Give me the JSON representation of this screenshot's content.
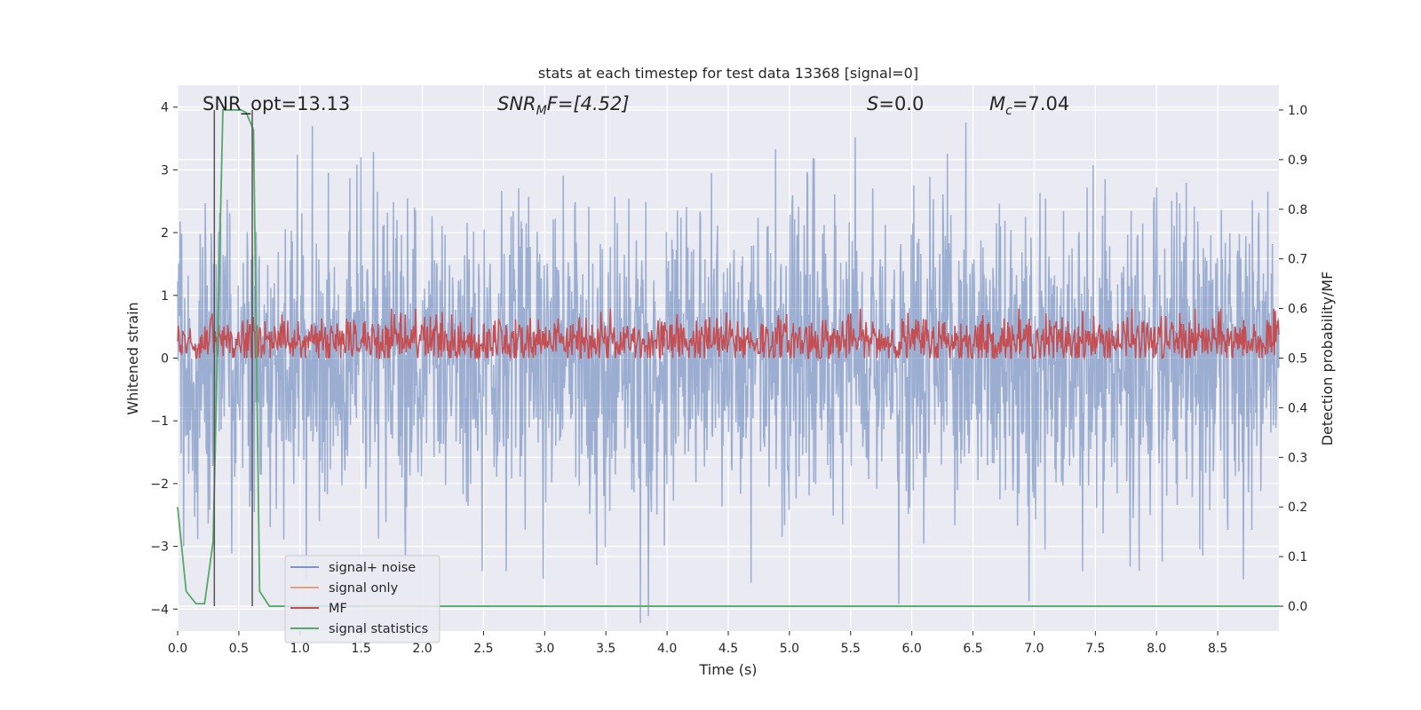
{
  "chart_data": {
    "type": "line",
    "title": "stats at each timestep for test data 13368 [signal=0]",
    "xlabel": "Time (s)",
    "ylabel": "Whitened strain",
    "ylabel_right": "Detection probability/MF",
    "xlim": [
      0.0,
      9.0
    ],
    "ylim": [
      -4.35,
      4.35
    ],
    "ylim_right": [
      -0.05,
      1.05
    ],
    "x_ticks": [
      "0.0",
      "0.5",
      "1.0",
      "1.5",
      "2.0",
      "2.5",
      "3.0",
      "3.5",
      "4.0",
      "4.5",
      "5.0",
      "5.5",
      "6.0",
      "6.5",
      "7.0",
      "7.5",
      "8.0",
      "8.5"
    ],
    "y_ticks": [
      "4",
      "3",
      "2",
      "1",
      "0",
      "−1",
      "−2",
      "−3",
      "−4"
    ],
    "y_ticks_right": [
      "1.0",
      "0.9",
      "0.8",
      "0.7",
      "0.6",
      "0.5",
      "0.4",
      "0.3",
      "0.2",
      "0.1",
      "0.0"
    ],
    "grid": true,
    "legend_position": "lower-left",
    "annotations": {
      "snr_opt": "SNR_opt=13.13",
      "snr_mf_prefix": "SNR",
      "snr_mf_sub": "M",
      "snr_mf_suffix": "F=[4.52]",
      "s_prefix": "S",
      "s_suffix": "=0.0",
      "mc_prefix": "M",
      "mc_sub": "c",
      "mc_suffix": "=7.04"
    },
    "vertical_markers": [
      0.3,
      0.61
    ],
    "series": [
      {
        "name": "signal+ noise",
        "axis": "left",
        "color": "#4c72b0",
        "alpha": 0.5,
        "noise_std": 1.0,
        "duration": 9.0
      },
      {
        "name": "signal only",
        "axis": "left",
        "color": "#dd8452",
        "alpha": 0.5,
        "values": []
      },
      {
        "name": "MF",
        "axis": "right",
        "color": "#c44e52",
        "baseline": 0.535,
        "amplitude": 0.05,
        "peak": 0.6
      },
      {
        "name": "signal statistics",
        "axis": "right",
        "color": "#55a868",
        "x": [
          0.0,
          0.07,
          0.15,
          0.22,
          0.29,
          0.37,
          0.44,
          0.52,
          0.56,
          0.62,
          0.67,
          0.75,
          0.82,
          0.9,
          9.0
        ],
        "y": [
          0.2,
          0.03,
          0.005,
          0.005,
          0.13,
          1.0,
          1.0,
          1.0,
          0.995,
          0.96,
          0.03,
          0.0,
          0.0,
          0.0,
          0.0
        ]
      }
    ]
  }
}
